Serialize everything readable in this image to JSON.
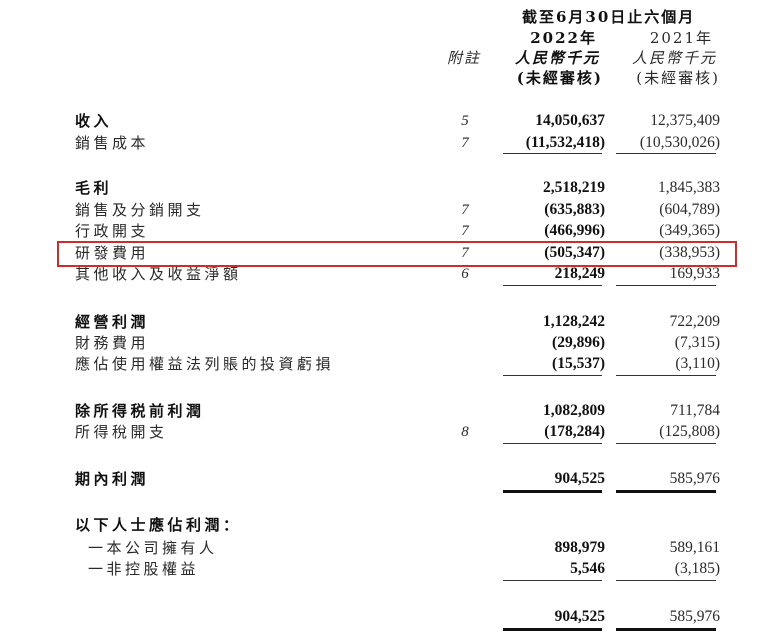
{
  "header": {
    "period": "截至6月30日止六個月",
    "year_2022": "2022年",
    "year_2021": "2021年",
    "note_label": "附註",
    "currency_2022": "人民幣千元",
    "currency_2021": "人民幣千元",
    "audit_2022": "(未經審核)",
    "audit_2021": "(未經審核)"
  },
  "highlight_color": "#c8302e",
  "rows": [
    {
      "label": "收入",
      "note": "5",
      "v2022": "14,050,637",
      "v2021": "12,375,409",
      "bold": true
    },
    {
      "label": "銷售成本",
      "note": "7",
      "v2022": "(11,532,418)",
      "v2021": "(10,530,026)",
      "bold": false
    },
    {
      "label": "毛利",
      "note": "",
      "v2022": "2,518,219",
      "v2021": "1,845,383",
      "bold": true
    },
    {
      "label": "銷售及分銷開支",
      "note": "7",
      "v2022": "(635,883)",
      "v2021": "(604,789)",
      "bold": false
    },
    {
      "label": "行政開支",
      "note": "7",
      "v2022": "(466,996)",
      "v2021": "(349,365)",
      "bold": false
    },
    {
      "label": "研發費用",
      "note": "7",
      "v2022": "(505,347)",
      "v2021": "(338,953)",
      "bold": false,
      "highlighted": true
    },
    {
      "label": "其他收入及收益淨額",
      "note": "6",
      "v2022": "218,249",
      "v2021": "169,933",
      "bold": false
    },
    {
      "label": "經營利潤",
      "note": "",
      "v2022": "1,128,242",
      "v2021": "722,209",
      "bold": true
    },
    {
      "label": "財務費用",
      "note": "",
      "v2022": "(29,896)",
      "v2021": "(7,315)",
      "bold": false
    },
    {
      "label": "應佔使用權益法列賬的投資虧損",
      "note": "",
      "v2022": "(15,537)",
      "v2021": "(3,110)",
      "bold": false
    },
    {
      "label": "除所得税前利潤",
      "note": "",
      "v2022": "1,082,809",
      "v2021": "711,784",
      "bold": true
    },
    {
      "label": "所得稅開支",
      "note": "8",
      "v2022": "(178,284)",
      "v2021": "(125,808)",
      "bold": false
    },
    {
      "label": "期內利潤",
      "note": "",
      "v2022": "904,525",
      "v2021": "585,976",
      "bold": true
    },
    {
      "label": "以下人士應佔利潤：",
      "note": "",
      "v2022": "",
      "v2021": "",
      "bold": true
    },
    {
      "label": "一本公司擁有人",
      "note": "",
      "v2022": "898,979",
      "v2021": "589,161",
      "bold": false,
      "indent": true
    },
    {
      "label": "一非控股權益",
      "note": "",
      "v2022": "5,546",
      "v2021": "(3,185)",
      "bold": false,
      "indent": true
    },
    {
      "label": "",
      "note": "",
      "v2022": "904,525",
      "v2021": "585,976",
      "bold": false
    }
  ]
}
